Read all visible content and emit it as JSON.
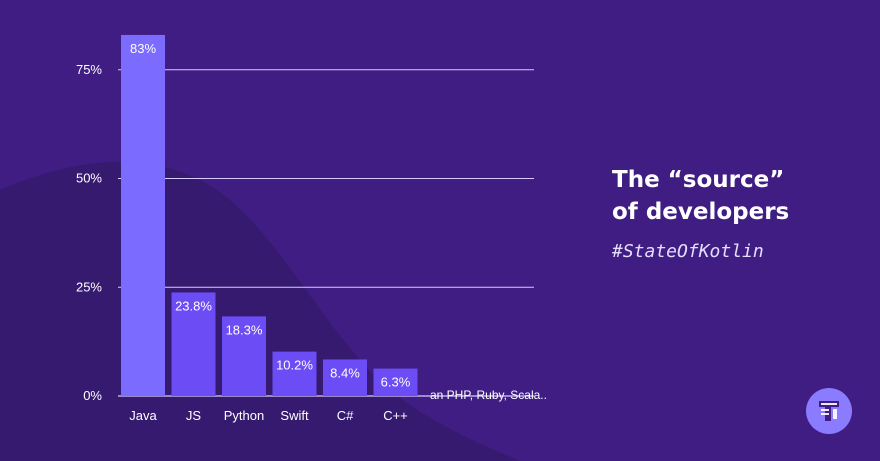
{
  "colors": {
    "background": "#3f1d82",
    "background_shape": "#351a70",
    "primary_bar": "#7b6bff",
    "bar": "#6c4cf5",
    "gridline": "#d7ccff",
    "text": "#ffffff",
    "logo": "#8b7bff"
  },
  "headline": {
    "line1": "The “source”",
    "line2": "of developers"
  },
  "hashtag": "#StateOfKotlin",
  "logo_icon": "brand-logo-icon",
  "chart_data": {
    "type": "bar",
    "categories": [
      "Java",
      "JS",
      "Python",
      "Swift",
      "C#",
      "C++"
    ],
    "values": [
      83,
      23.8,
      18.3,
      10.2,
      8.4,
      6.3
    ],
    "value_labels": [
      "83%",
      "23.8%",
      "18.3%",
      "10.2%",
      "8.4%",
      "6.3%"
    ],
    "y_ticks": [
      0,
      25,
      50,
      75
    ],
    "y_tick_labels": [
      "0%",
      "25%",
      "50%",
      "75%"
    ],
    "ylim": [
      0,
      83
    ],
    "grid": true,
    "annotation": "an PHP, Ruby, Scala.."
  }
}
